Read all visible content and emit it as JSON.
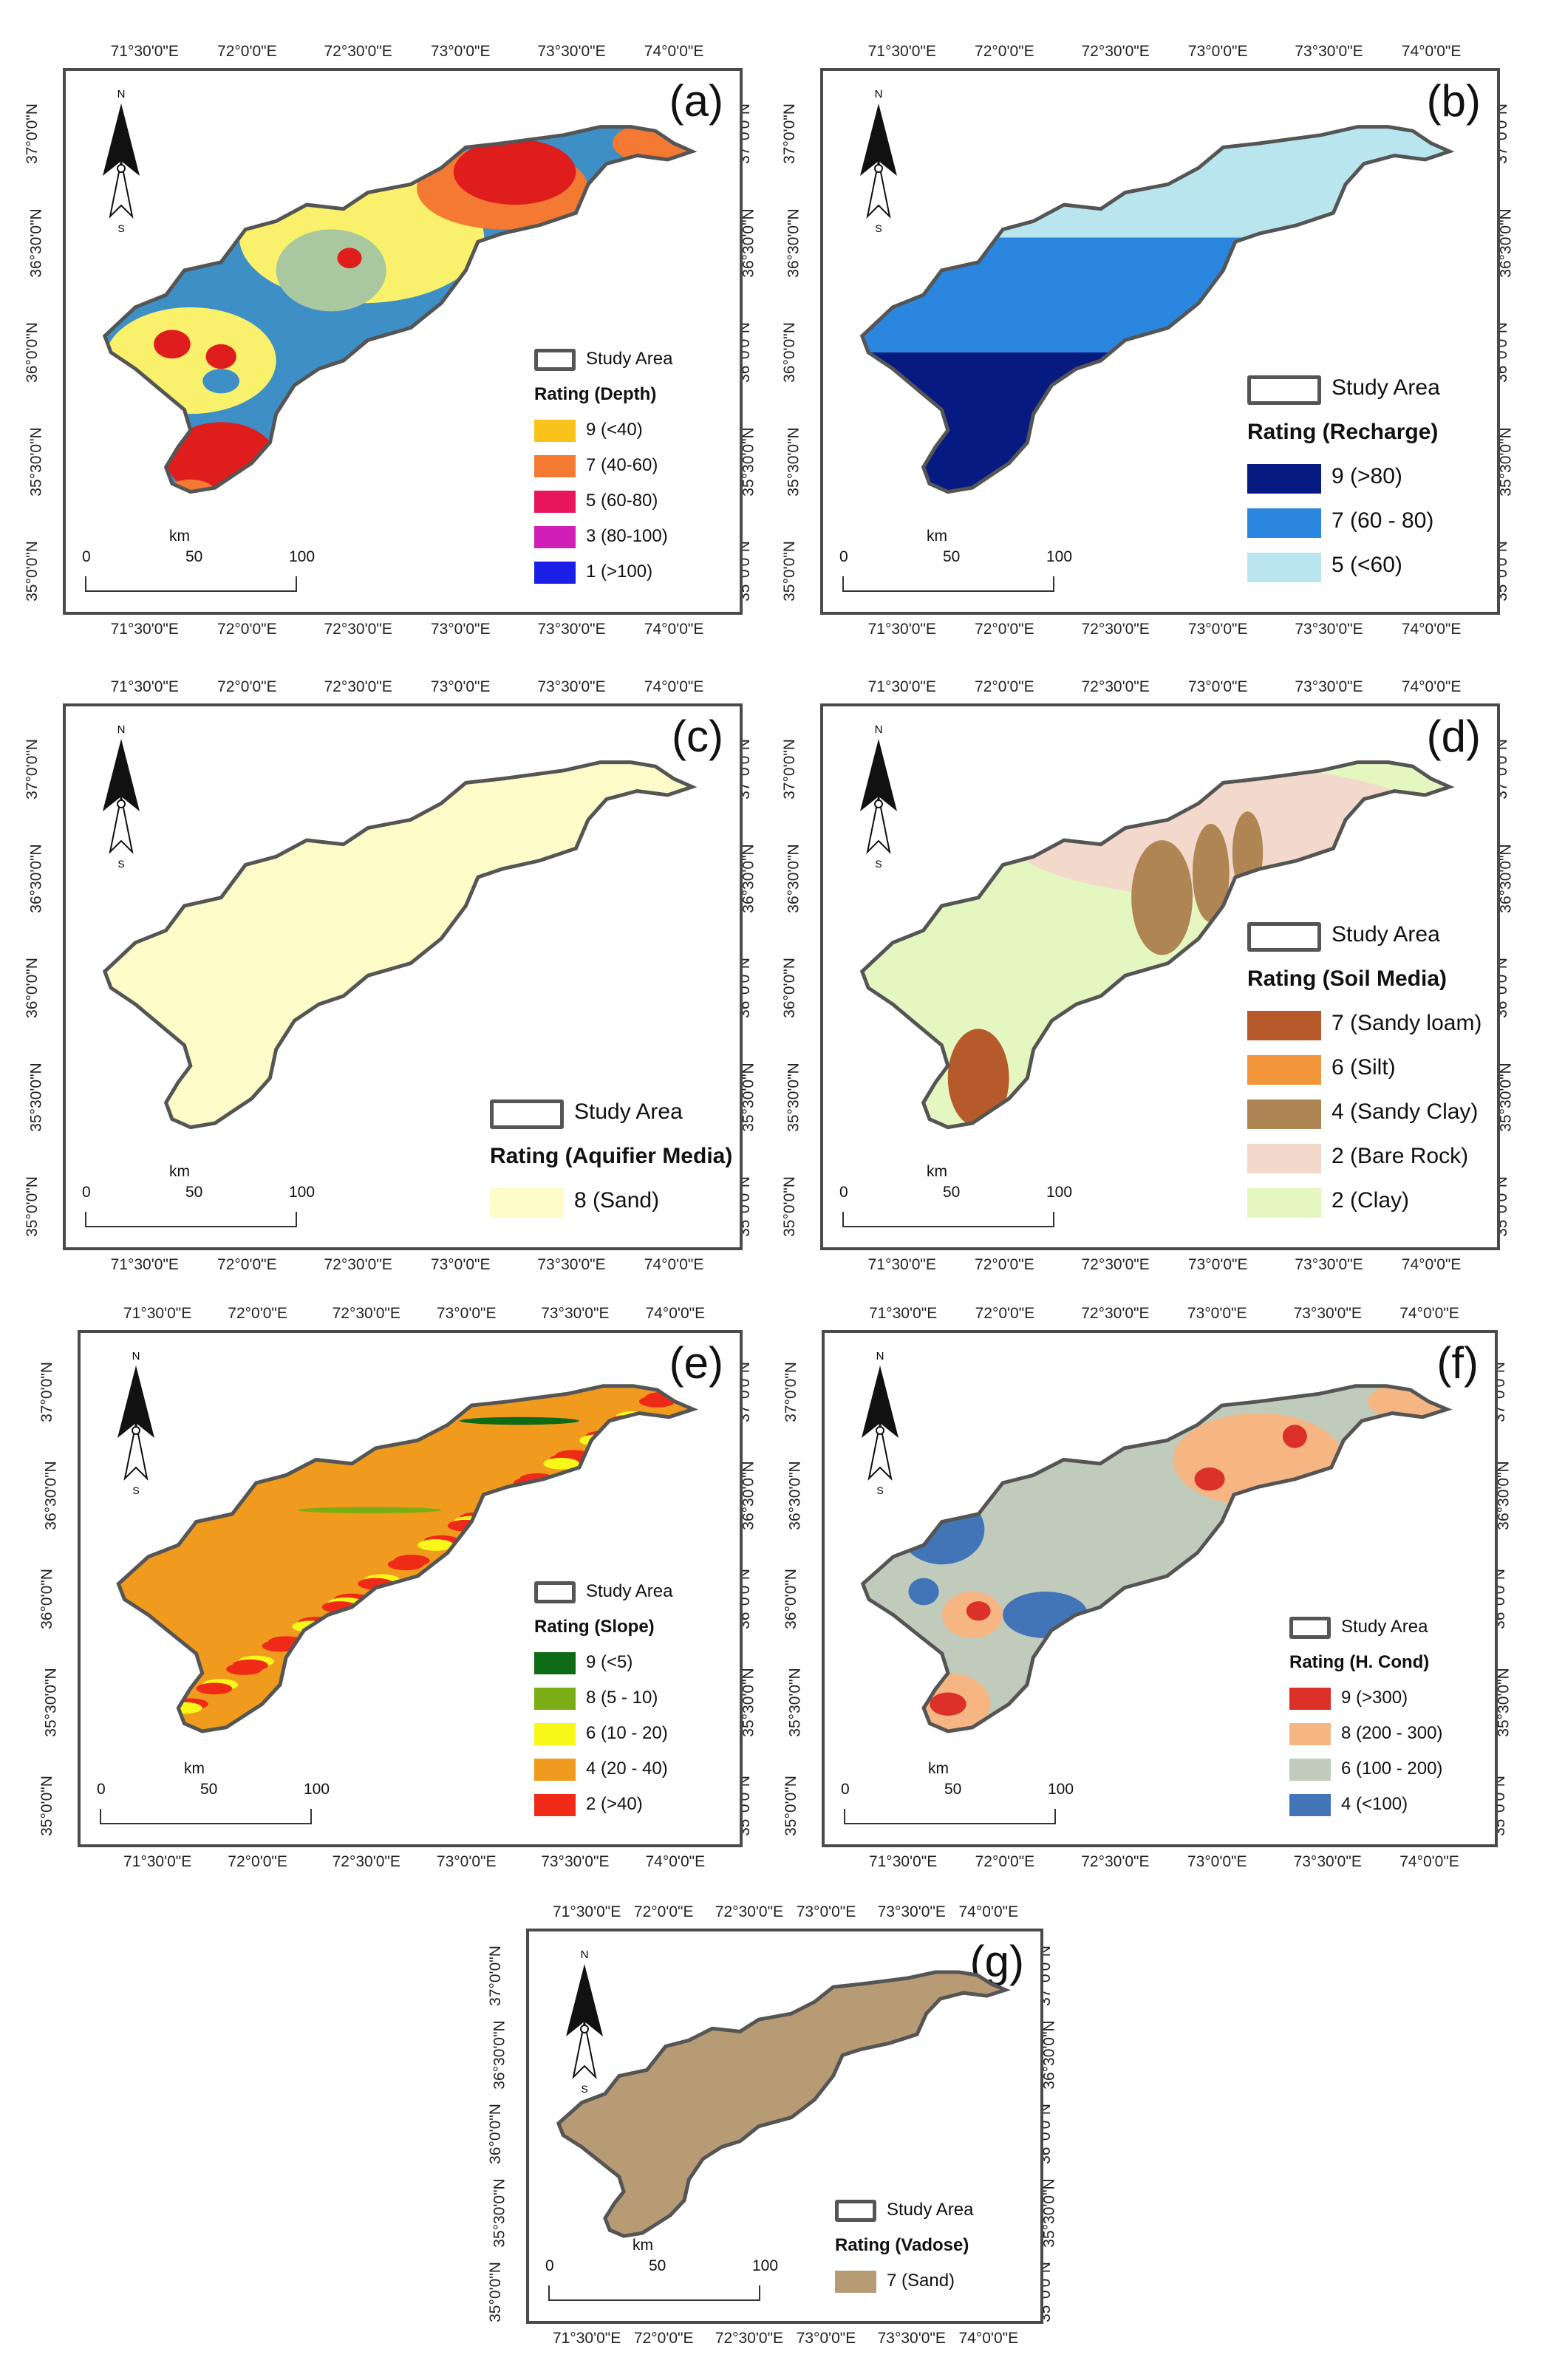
{
  "lon_labels": [
    "71°30'0\"E",
    "72°0'0\"E",
    "72°30'0\"E",
    "73°0'0\"E",
    "73°30'0\"E",
    "74°0'0\"E"
  ],
  "lat_labels": [
    "37°0'0\"N",
    "36°30'0\"N",
    "36°0'0\"N",
    "35°30'0\"N",
    "35°0'0\"N"
  ],
  "north": {
    "n": "N",
    "s": "S"
  },
  "scale": {
    "unit": "km",
    "ticks": [
      "0",
      "50",
      "100"
    ]
  },
  "study_area_label": "Study Area",
  "panels": [
    {
      "tag": "(a)",
      "title": "Rating (Depth)",
      "items": [
        {
          "label": "9 (<40)",
          "color": "#f9c31b"
        },
        {
          "label": "7 (40-60)",
          "color": "#f47a34"
        },
        {
          "label": "5 (60-80)",
          "color": "#e8175d"
        },
        {
          "label": "3 (80-100)",
          "color": "#d01fb8"
        },
        {
          "label": "1 (>100)",
          "color": "#1b1fe6"
        }
      ]
    },
    {
      "tag": "(b)",
      "title": "Rating (Recharge)",
      "items": [
        {
          "label": "9 (>80)",
          "color": "#061a82"
        },
        {
          "label": "7 (60 - 80)",
          "color": "#2a86de"
        },
        {
          "label": "5 (<60)",
          "color": "#b9e6ee"
        }
      ]
    },
    {
      "tag": "(c)",
      "title": "Rating (Aquifier Media)",
      "items": [
        {
          "label": "8 (Sand)",
          "color": "#fdfbc8"
        }
      ]
    },
    {
      "tag": "(d)",
      "title": "Rating (Soil Media)",
      "items": [
        {
          "label": "7 (Sandy loam)",
          "color": "#b65a2c"
        },
        {
          "label": "6 (Silt)",
          "color": "#f2953b"
        },
        {
          "label": "4 (Sandy Clay)",
          "color": "#b08554"
        },
        {
          "label": "2 (Bare Rock)",
          "color": "#f3d9cb"
        },
        {
          "label": "2 (Clay)",
          "color": "#e4f7c0"
        }
      ]
    },
    {
      "tag": "(e)",
      "title": "Rating (Slope)",
      "items": [
        {
          "label": "9 (<5)",
          "color": "#0f6a16"
        },
        {
          "label": "8 (5 - 10)",
          "color": "#7aae14"
        },
        {
          "label": "6 (10 - 20)",
          "color": "#f7f71a"
        },
        {
          "label": "4 (20 - 40)",
          "color": "#f09a1e"
        },
        {
          "label": "2 (>40)",
          "color": "#ef2a16"
        }
      ]
    },
    {
      "tag": "(f)",
      "title": "Rating (H. Cond)",
      "items": [
        {
          "label": "9 (>300)",
          "color": "#dc3129"
        },
        {
          "label": "8 (200 - 300)",
          "color": "#f6b683"
        },
        {
          "label": "6 (100 - 200)",
          "color": "#c1cbbc"
        },
        {
          "label": "4 (<100)",
          "color": "#4274b8"
        }
      ]
    },
    {
      "tag": "(g)",
      "title": "Rating (Vadose)",
      "items": [
        {
          "label": "7 (Sand)",
          "color": "#b79b74"
        }
      ]
    }
  ]
}
